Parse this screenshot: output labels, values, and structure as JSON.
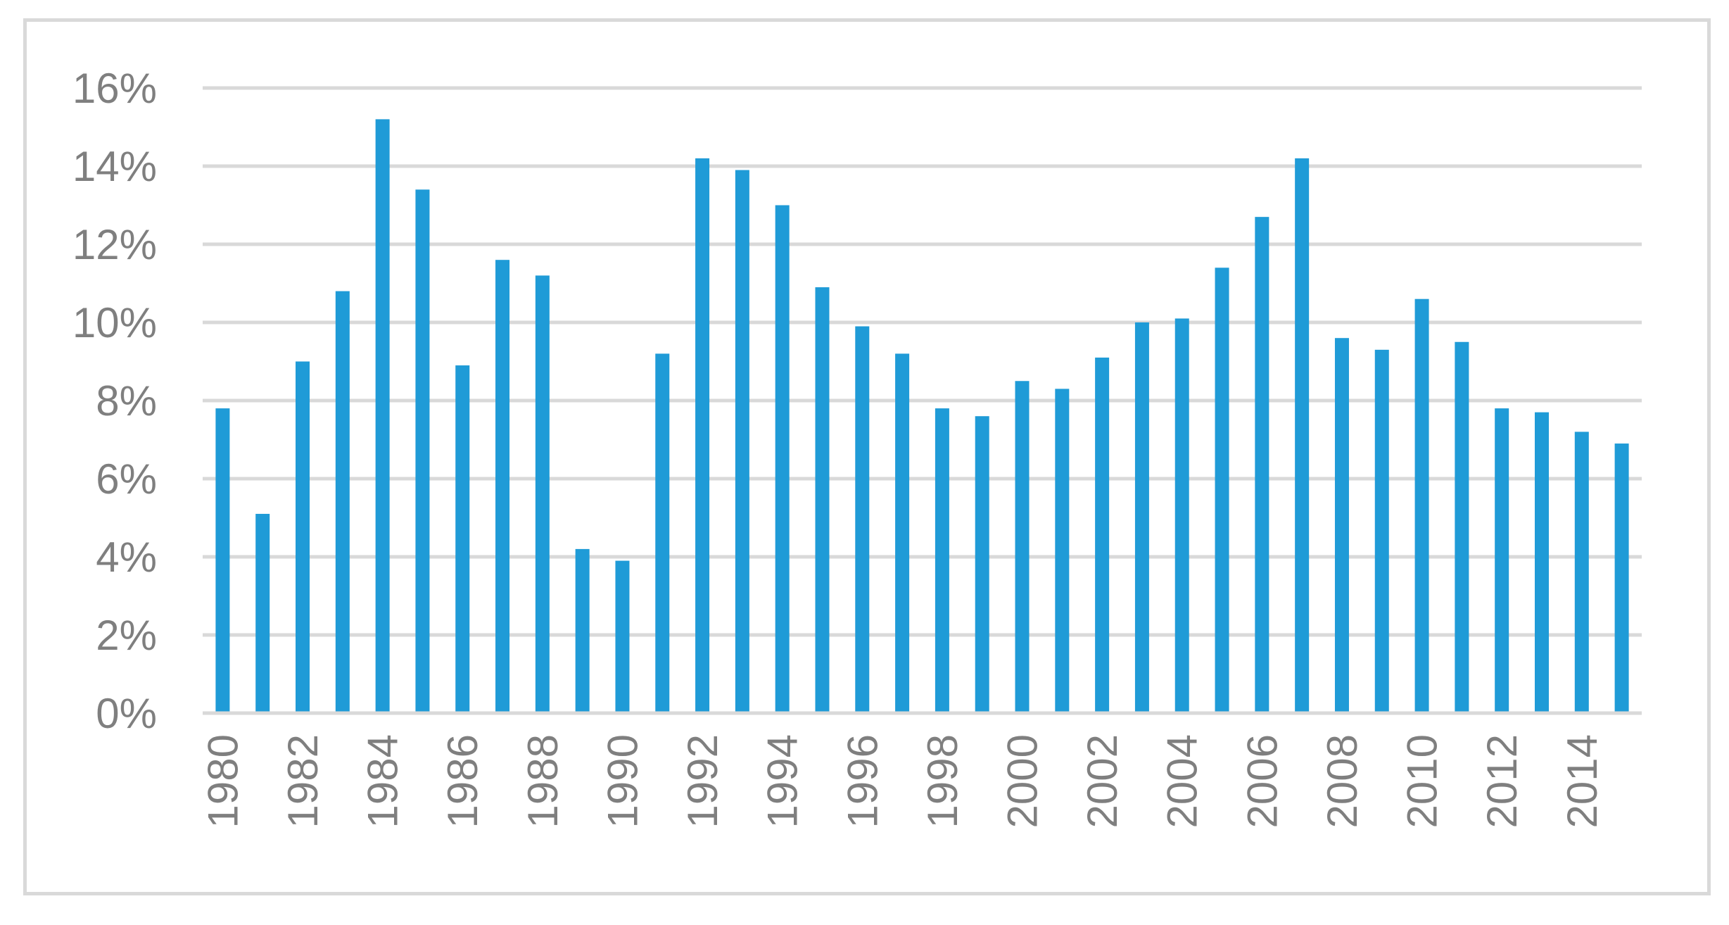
{
  "chart_data": {
    "type": "bar",
    "title": "",
    "xlabel": "",
    "ylabel": "",
    "ylim": [
      0,
      16
    ],
    "y_tick_values": [
      0,
      2,
      4,
      6,
      8,
      10,
      12,
      14,
      16
    ],
    "y_tick_labels": [
      "0%",
      "2%",
      "4%",
      "6%",
      "8%",
      "10%",
      "12%",
      "14%",
      "16%"
    ],
    "categories": [
      "1980",
      "1981",
      "1982",
      "1983",
      "1984",
      "1985",
      "1986",
      "1987",
      "1988",
      "1989",
      "1990",
      "1991",
      "1992",
      "1993",
      "1994",
      "1995",
      "1996",
      "1997",
      "1998",
      "1999",
      "2000",
      "2001",
      "2002",
      "2003",
      "2004",
      "2005",
      "2006",
      "2007",
      "2008",
      "2009",
      "2010",
      "2011",
      "2012",
      "2013",
      "2014",
      "2015"
    ],
    "x_tick_labels_shown": [
      "1980",
      "1982",
      "1984",
      "1986",
      "1988",
      "1990",
      "1992",
      "1994",
      "1996",
      "1998",
      "2000",
      "2002",
      "2004",
      "2006",
      "2008",
      "2010",
      "2012",
      "2014"
    ],
    "values": [
      7.8,
      5.1,
      9.0,
      10.8,
      15.2,
      13.4,
      8.9,
      11.6,
      11.2,
      4.2,
      3.9,
      9.2,
      14.2,
      13.9,
      13.0,
      10.9,
      9.9,
      9.2,
      7.8,
      7.6,
      8.5,
      8.3,
      9.1,
      10.0,
      10.1,
      11.4,
      12.7,
      14.2,
      9.6,
      9.3,
      10.6,
      9.5,
      7.8,
      7.7,
      7.2,
      6.9
    ],
    "grid": true,
    "legend": "none",
    "bar_color": "#1f9bd7"
  }
}
